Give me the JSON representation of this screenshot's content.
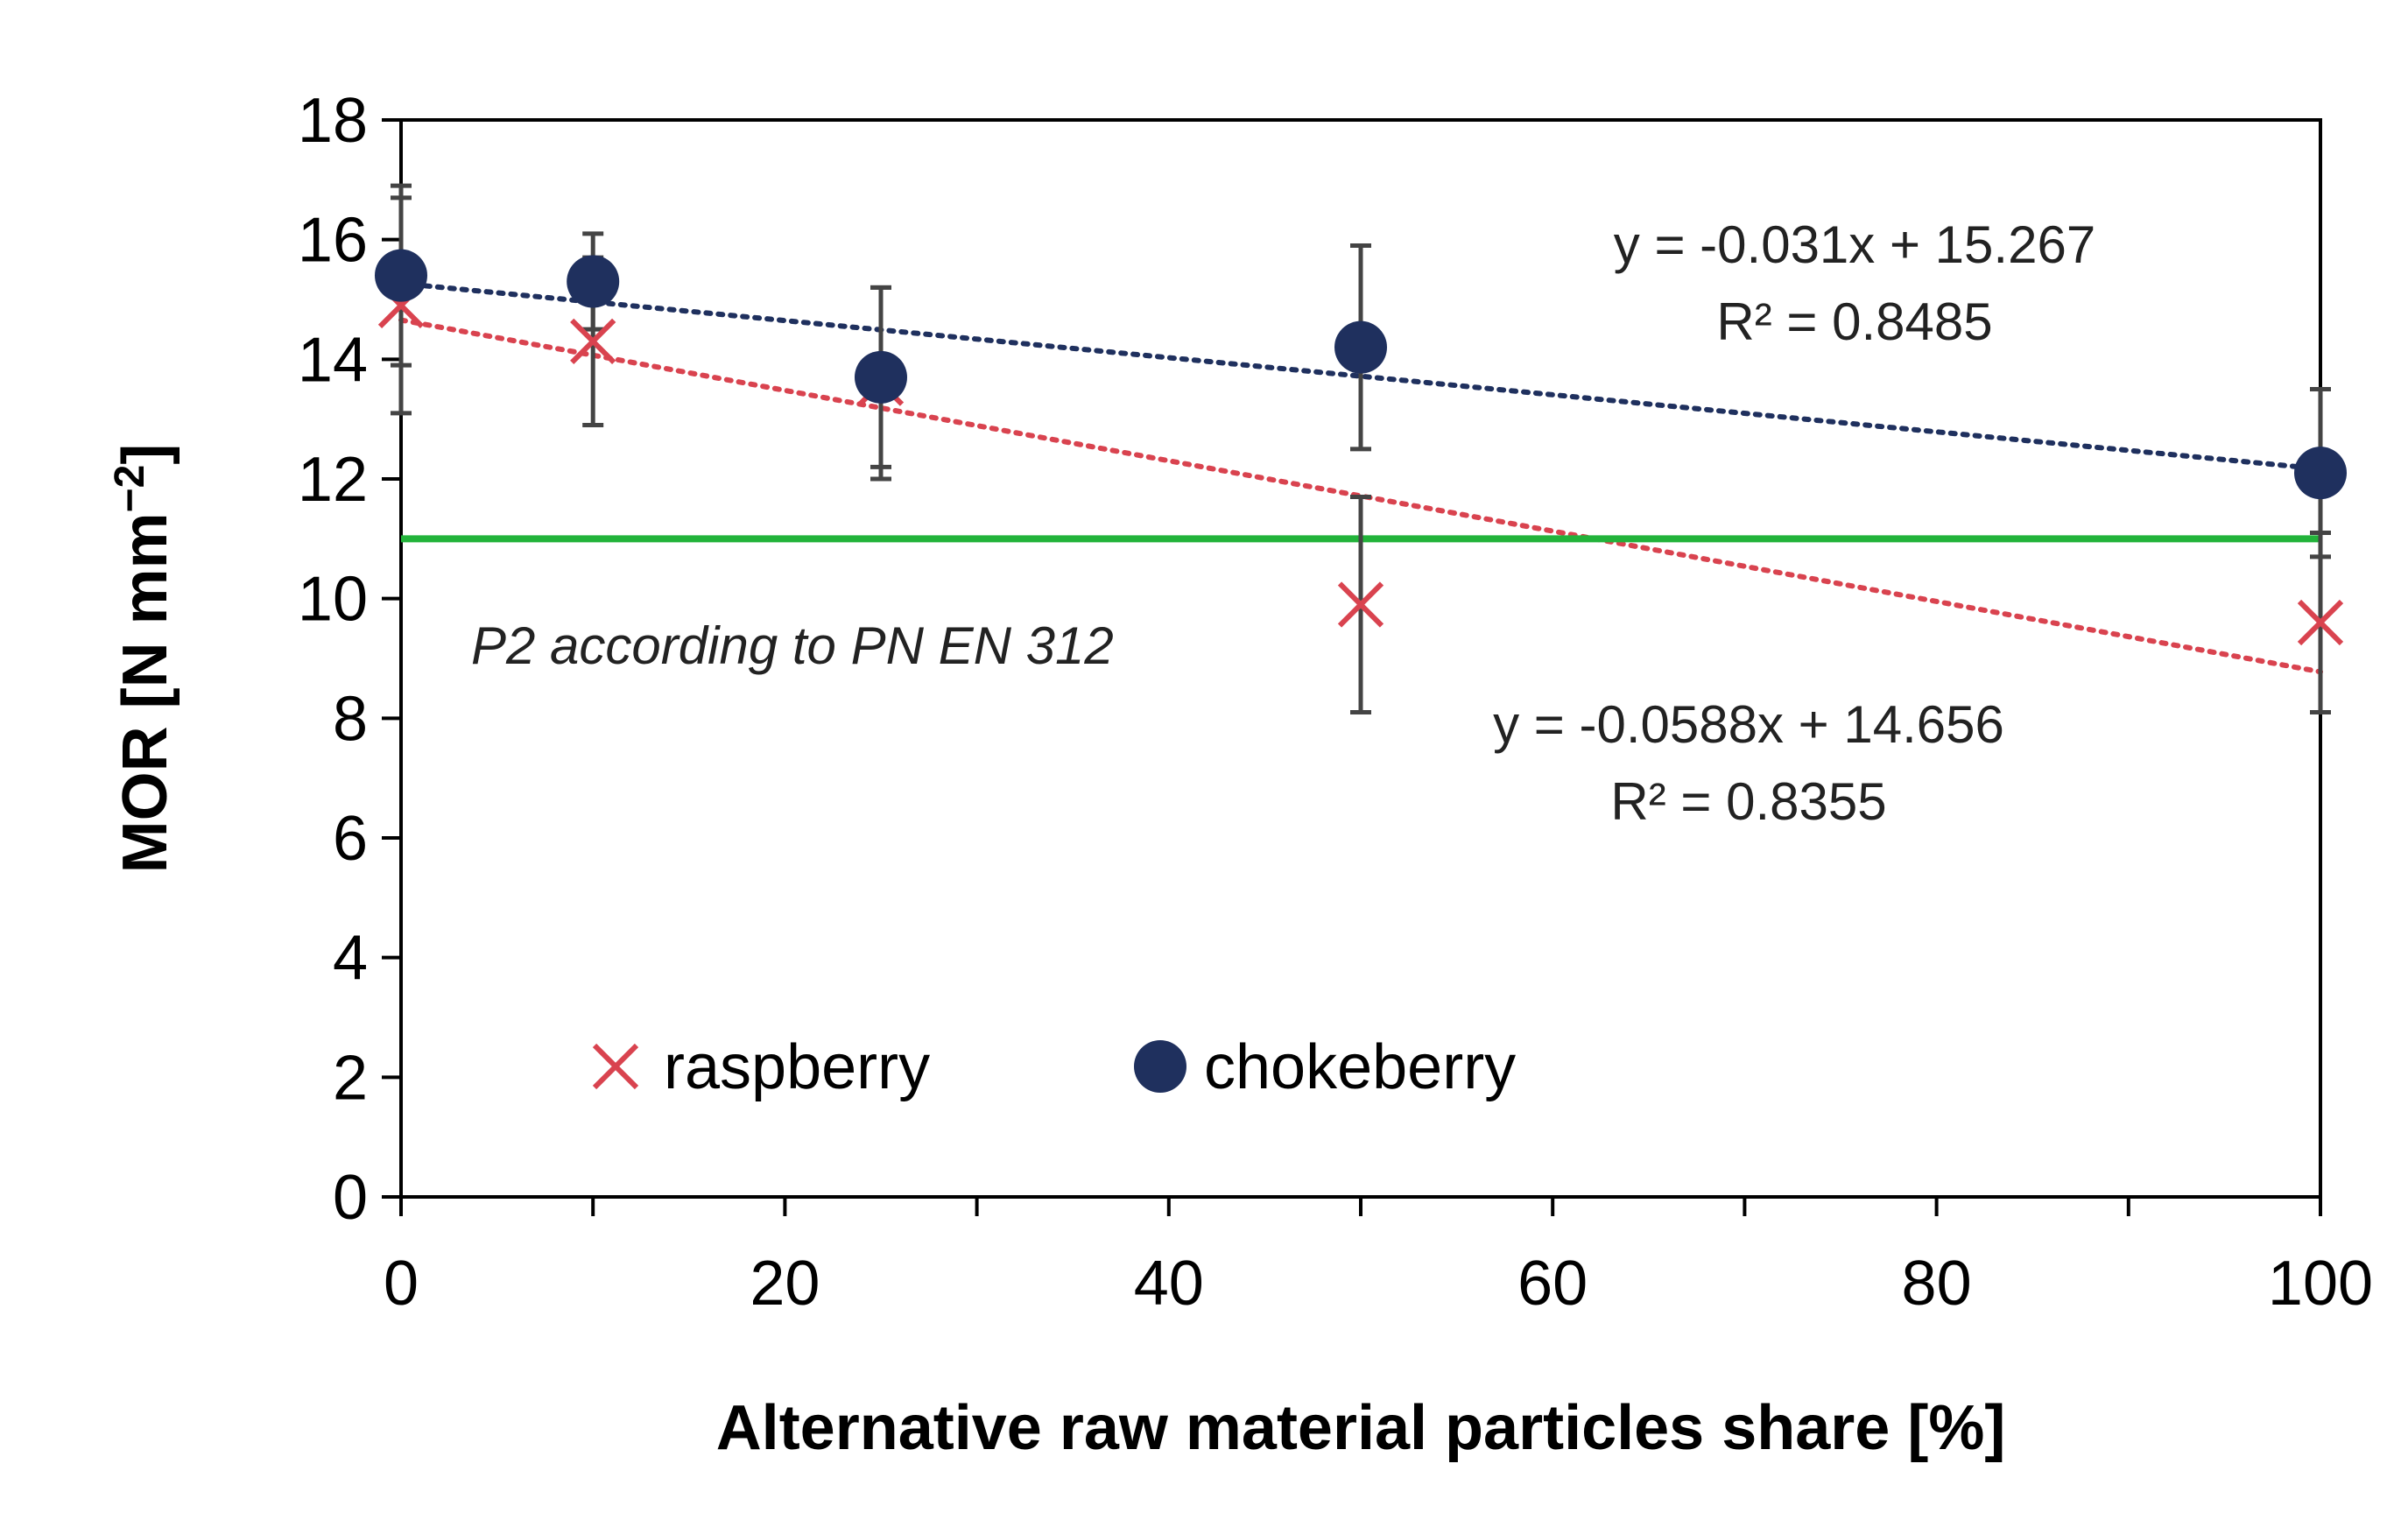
{
  "chart_data": {
    "type": "scatter",
    "title": "",
    "xlabel": "Alternative raw material particles share [%]",
    "ylabel_main": "MOR [N mm",
    "ylabel_sup": "−2",
    "ylabel_end": "]",
    "xlim": [
      0,
      100
    ],
    "ylim": [
      0,
      18
    ],
    "x_ticks": [
      0,
      20,
      40,
      60,
      80,
      100
    ],
    "x_minor_step": 10,
    "y_ticks": [
      0,
      2,
      4,
      6,
      8,
      10,
      12,
      14,
      16,
      18
    ],
    "series": [
      {
        "name": "raspberry",
        "marker": "x",
        "color": "#d9434f",
        "trend_color": "#d9434f",
        "x": [
          0,
          10,
          25,
          50,
          100
        ],
        "y": [
          14.9,
          14.3,
          13.6,
          9.9,
          9.6
        ],
        "error": [
          1.8,
          1.4,
          1.6,
          1.8,
          1.5
        ],
        "trendline": {
          "slope": -0.0588,
          "intercept": 14.656
        },
        "equation": "y = -0.0588x + 14.656",
        "r2_label": "R² = 0.8355"
      },
      {
        "name": "chokeberry",
        "marker": "circle",
        "color": "#1f305e",
        "trend_color": "#1f305e",
        "x": [
          0,
          10,
          25,
          50,
          100
        ],
        "y": [
          15.4,
          15.3,
          13.7,
          14.2,
          12.1
        ],
        "error": [
          1.5,
          0.8,
          1.5,
          1.7,
          1.4
        ],
        "trendline": {
          "slope": -0.031,
          "intercept": 15.267
        },
        "equation": "y = -0.031x + 15.267",
        "r2_label": "R² = 0.8485"
      }
    ],
    "reference_line": {
      "y": 11,
      "color": "#22b33a",
      "label": "P2 according to PN EN 312"
    },
    "legend": {
      "position": "bottom-left",
      "items": [
        "raspberry",
        "chokeberry"
      ]
    },
    "grid": false,
    "axis_color": "#000000",
    "errorbar_color": "#444444"
  }
}
